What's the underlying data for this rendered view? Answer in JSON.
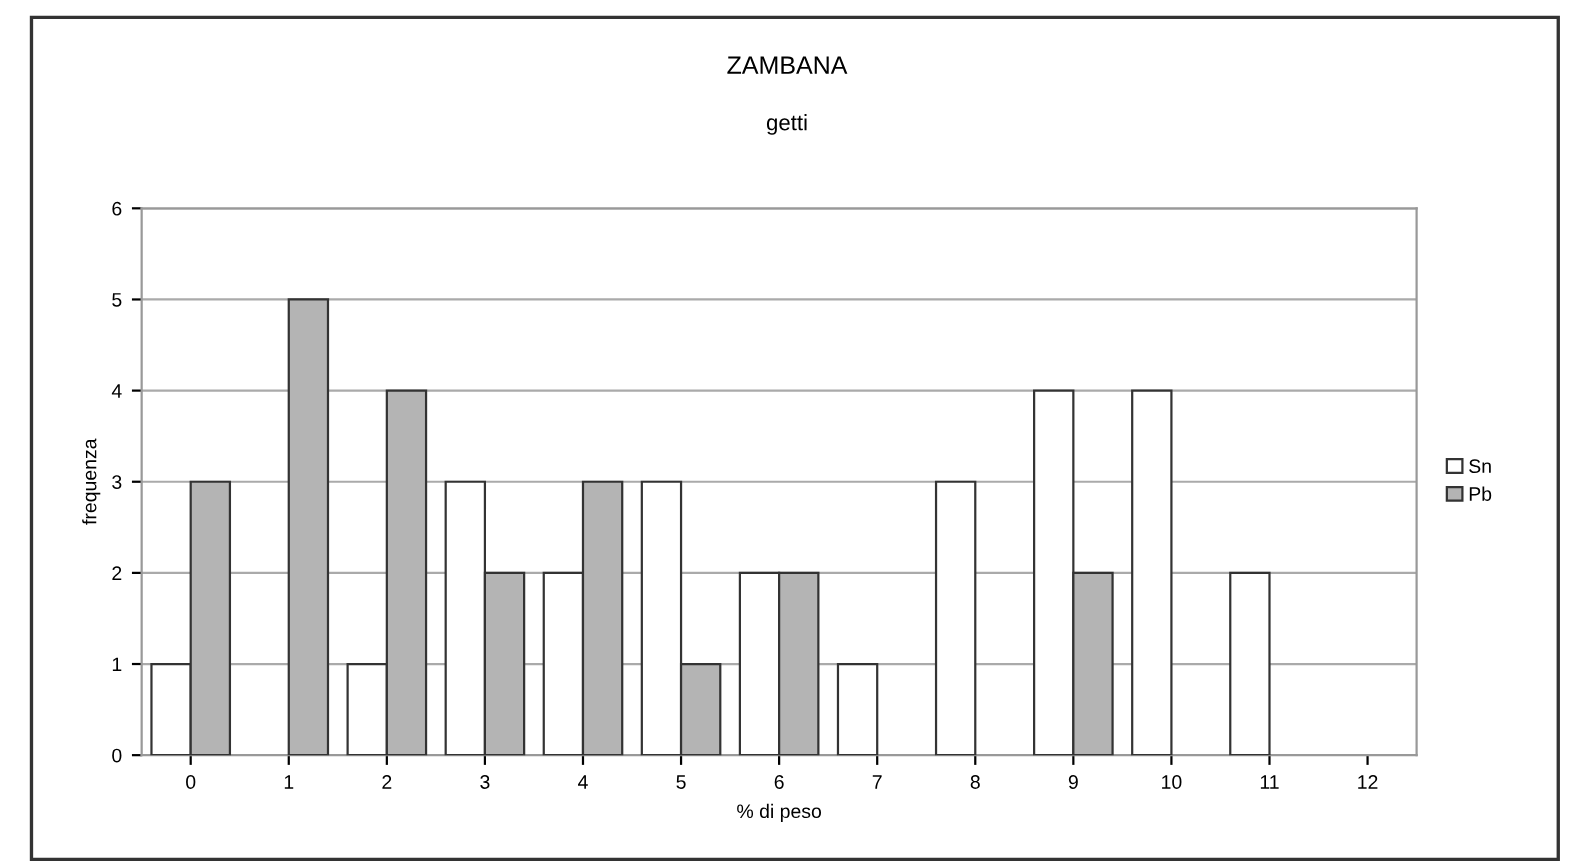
{
  "chart_data": {
    "type": "bar",
    "title": "ZAMBANA",
    "subtitle": "getti",
    "xlabel": "% di peso",
    "ylabel": "frequenza",
    "categories": [
      "0",
      "1",
      "2",
      "3",
      "4",
      "5",
      "6",
      "7",
      "8",
      "9",
      "10",
      "11",
      "12"
    ],
    "series": [
      {
        "name": "Sn",
        "color": "#ffffff",
        "values": [
          1,
          0,
          1,
          3,
          2,
          3,
          2,
          1,
          3,
          4,
          4,
          2,
          0
        ]
      },
      {
        "name": "Pb",
        "color": "#b4b4b4",
        "values": [
          3,
          5,
          4,
          2,
          3,
          1,
          2,
          0,
          0,
          2,
          0,
          0,
          0
        ]
      }
    ],
    "ylim": [
      0,
      6
    ],
    "yticks": [
      0,
      1,
      2,
      3,
      4,
      5,
      6
    ],
    "grid": "y",
    "legend": "right"
  }
}
